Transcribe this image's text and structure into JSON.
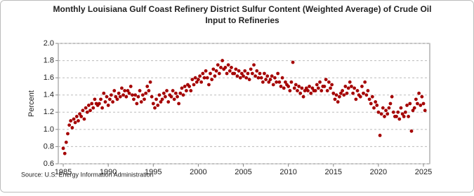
{
  "chart_data": {
    "type": "scatter",
    "title": [
      "Monthly Louisiana Gulf Coast Refinery District Sulfur Content (Weighted Average) of Crude Oil",
      "Input to Refineries"
    ],
    "y_label": "Percent",
    "source": "Source: U.S. Energy Information Administration",
    "xlim": [
      1984.45,
      2025.7
    ],
    "xticks": [
      1985,
      1990,
      1995,
      2000,
      2005,
      2010,
      2015,
      2020,
      2025
    ],
    "ylim": [
      0.6,
      2.0
    ],
    "yticks": [
      {
        "value": 0.6,
        "label": "0.6"
      },
      {
        "value": 0.8,
        "label": "0.8"
      },
      {
        "value": 1.0,
        "label": "1.0"
      },
      {
        "value": 1.2,
        "label": "1.2"
      },
      {
        "value": 1.4,
        "label": "1.4"
      },
      {
        "value": 1.6,
        "label": "1.6"
      },
      {
        "value": 1.8,
        "label": "1.8"
      },
      {
        "value": 2.0,
        "label": "2.0"
      }
    ],
    "grid": true,
    "color": "#a50000",
    "x": [
      1985.0,
      1985.17,
      1985.33,
      1985.5,
      1985.67,
      1985.83,
      1986.0,
      1986.17,
      1986.33,
      1986.5,
      1986.67,
      1986.83,
      1987.0,
      1987.17,
      1987.33,
      1987.5,
      1987.67,
      1987.83,
      1988.0,
      1988.17,
      1988.33,
      1988.5,
      1988.67,
      1988.83,
      1989.0,
      1989.17,
      1989.33,
      1989.5,
      1989.67,
      1989.83,
      1990.0,
      1990.17,
      1990.33,
      1990.5,
      1990.67,
      1990.83,
      1991.0,
      1991.17,
      1991.33,
      1991.5,
      1991.67,
      1991.83,
      1992.0,
      1992.17,
      1992.33,
      1992.5,
      1992.67,
      1992.83,
      1993.0,
      1993.17,
      1993.33,
      1993.5,
      1993.67,
      1993.83,
      1994.0,
      1994.17,
      1994.33,
      1994.5,
      1994.67,
      1994.83,
      1995.0,
      1995.17,
      1995.33,
      1995.5,
      1995.67,
      1995.83,
      1996.0,
      1996.17,
      1996.33,
      1996.5,
      1996.67,
      1996.83,
      1997.0,
      1997.17,
      1997.33,
      1997.5,
      1997.67,
      1997.83,
      1998.0,
      1998.17,
      1998.33,
      1998.5,
      1998.67,
      1998.83,
      1999.0,
      1999.17,
      1999.33,
      1999.5,
      1999.67,
      1999.83,
      2000.0,
      2000.17,
      2000.33,
      2000.5,
      2000.67,
      2000.83,
      2001.0,
      2001.17,
      2001.33,
      2001.5,
      2001.67,
      2001.83,
      2002.0,
      2002.17,
      2002.33,
      2002.5,
      2002.67,
      2002.83,
      2003.0,
      2003.17,
      2003.33,
      2003.5,
      2003.67,
      2003.83,
      2004.0,
      2004.17,
      2004.33,
      2004.5,
      2004.67,
      2004.83,
      2005.0,
      2005.17,
      2005.33,
      2005.5,
      2005.67,
      2005.83,
      2006.0,
      2006.17,
      2006.33,
      2006.5,
      2006.67,
      2006.83,
      2007.0,
      2007.17,
      2007.33,
      2007.5,
      2007.67,
      2007.83,
      2008.0,
      2008.17,
      2008.33,
      2008.5,
      2008.67,
      2008.83,
      2009.0,
      2009.17,
      2009.33,
      2009.5,
      2009.67,
      2009.83,
      2010.0,
      2010.17,
      2010.33,
      2010.5,
      2010.67,
      2010.83,
      2011.0,
      2011.17,
      2011.33,
      2011.5,
      2011.67,
      2011.83,
      2012.0,
      2012.17,
      2012.33,
      2012.5,
      2012.67,
      2012.83,
      2013.0,
      2013.17,
      2013.33,
      2013.5,
      2013.67,
      2013.83,
      2014.0,
      2014.17,
      2014.33,
      2014.5,
      2014.67,
      2014.83,
      2015.0,
      2015.17,
      2015.33,
      2015.5,
      2015.67,
      2015.83,
      2016.0,
      2016.17,
      2016.33,
      2016.5,
      2016.67,
      2016.83,
      2017.0,
      2017.17,
      2017.33,
      2017.5,
      2017.67,
      2017.83,
      2018.0,
      2018.17,
      2018.33,
      2018.5,
      2018.67,
      2018.83,
      2019.0,
      2019.17,
      2019.33,
      2019.5,
      2019.67,
      2019.83,
      2020.0,
      2020.17,
      2020.33,
      2020.5,
      2020.67,
      2020.83,
      2021.0,
      2021.17,
      2021.33,
      2021.5,
      2021.67,
      2021.83,
      2022.0,
      2022.17,
      2022.33,
      2022.5,
      2022.67,
      2022.83,
      2023.0,
      2023.17,
      2023.33,
      2023.5,
      2023.67,
      2023.83,
      2024.0,
      2024.17,
      2024.33,
      2024.5,
      2024.67,
      2024.83,
      2025.0,
      2025.17
    ],
    "values": [
      0.78,
      0.72,
      0.85,
      0.95,
      1.05,
      1.1,
      1.02,
      1.12,
      1.08,
      1.15,
      1.1,
      1.18,
      1.15,
      1.22,
      1.12,
      1.25,
      1.2,
      1.28,
      1.22,
      1.3,
      1.25,
      1.35,
      1.3,
      1.28,
      1.3,
      1.35,
      1.25,
      1.42,
      1.32,
      1.38,
      1.28,
      1.35,
      1.4,
      1.32,
      1.45,
      1.38,
      1.35,
      1.42,
      1.38,
      1.48,
      1.4,
      1.45,
      1.38,
      1.45,
      1.42,
      1.5,
      1.4,
      1.35,
      1.4,
      1.3,
      1.38,
      1.45,
      1.32,
      1.4,
      1.35,
      1.42,
      1.5,
      1.45,
      1.55,
      1.38,
      1.3,
      1.25,
      1.35,
      1.28,
      1.4,
      1.32,
      1.35,
      1.42,
      1.38,
      1.45,
      1.32,
      1.4,
      1.38,
      1.45,
      1.35,
      1.42,
      1.38,
      1.3,
      1.42,
      1.48,
      1.4,
      1.5,
      1.45,
      1.52,
      1.5,
      1.45,
      1.58,
      1.52,
      1.6,
      1.55,
      1.58,
      1.62,
      1.55,
      1.65,
      1.6,
      1.68,
      1.6,
      1.52,
      1.65,
      1.58,
      1.7,
      1.62,
      1.68,
      1.75,
      1.65,
      1.72,
      1.8,
      1.7,
      1.72,
      1.65,
      1.75,
      1.68,
      1.72,
      1.65,
      1.65,
      1.7,
      1.62,
      1.68,
      1.6,
      1.65,
      1.62,
      1.68,
      1.6,
      1.65,
      1.58,
      1.7,
      1.65,
      1.75,
      1.62,
      1.68,
      1.6,
      1.65,
      1.6,
      1.55,
      1.65,
      1.58,
      1.62,
      1.55,
      1.58,
      1.62,
      1.52,
      1.6,
      1.55,
      1.65,
      1.55,
      1.5,
      1.6,
      1.48,
      1.55,
      1.52,
      1.5,
      1.45,
      1.55,
      1.78,
      1.48,
      1.52,
      1.45,
      1.5,
      1.42,
      1.48,
      1.38,
      1.45,
      1.48,
      1.45,
      1.5,
      1.42,
      1.48,
      1.45,
      1.45,
      1.52,
      1.48,
      1.55,
      1.45,
      1.5,
      1.5,
      1.58,
      1.45,
      1.55,
      1.48,
      1.52,
      1.42,
      1.35,
      1.4,
      1.32,
      1.38,
      1.42,
      1.45,
      1.4,
      1.5,
      1.42,
      1.48,
      1.55,
      1.5,
      1.42,
      1.48,
      1.35,
      1.45,
      1.4,
      1.38,
      1.5,
      1.42,
      1.55,
      1.4,
      1.45,
      1.35,
      1.3,
      1.38,
      1.25,
      1.32,
      1.28,
      1.2,
      0.93,
      1.18,
      1.25,
      1.15,
      1.22,
      1.18,
      1.25,
      1.3,
      1.38,
      1.2,
      1.15,
      1.15,
      1.2,
      1.12,
      1.25,
      1.18,
      1.15,
      1.2,
      1.28,
      1.15,
      1.3,
      0.98,
      1.22,
      1.25,
      1.35,
      1.3,
      1.42,
      1.28,
      1.38,
      1.3,
      1.22
    ]
  }
}
